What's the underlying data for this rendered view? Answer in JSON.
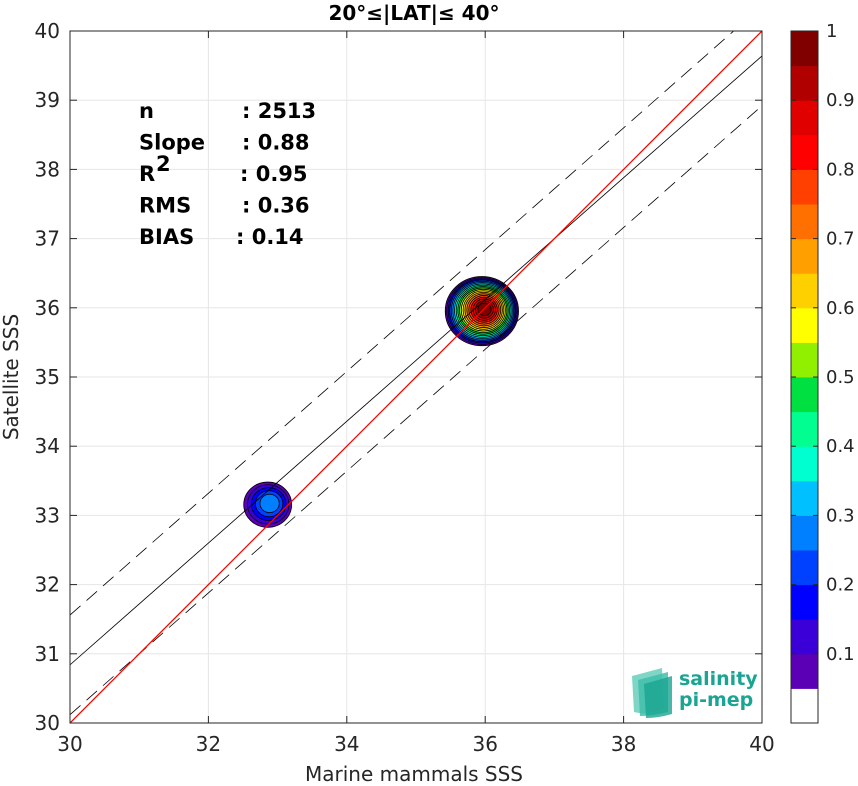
{
  "chart_data": {
    "type": "contour-scatter",
    "title": "20°≤|LAT|≤ 40°",
    "xlabel": "Marine mammals SSS",
    "ylabel": "Satellite SSS",
    "xlim": [
      30,
      40
    ],
    "ylim": [
      30,
      40
    ],
    "xticks": [
      "30",
      "32",
      "34",
      "36",
      "38",
      "40"
    ],
    "yticks": [
      "30",
      "31",
      "32",
      "33",
      "34",
      "35",
      "36",
      "37",
      "38",
      "39",
      "40"
    ],
    "grid": true,
    "stats": [
      {
        "label": "n",
        "value": ": 2513"
      },
      {
        "label": "Slope",
        "value": ": 0.88"
      },
      {
        "label": "R",
        "sup": "2",
        "value": ": 0.95"
      },
      {
        "label": "RMS",
        "value": ": 0.36"
      },
      {
        "label": "BIAS",
        "value": ": 0.14"
      }
    ],
    "lines": {
      "identity": {
        "slope": 1,
        "intercept": 0,
        "color": "#ff0000"
      },
      "fit": {
        "slope": 0.88,
        "intercept": 4.44,
        "color": "#000000"
      },
      "upper_bound": {
        "slope": 0.88,
        "intercept": 5.16,
        "color": "#000000",
        "dash": true
      },
      "lower_bound": {
        "slope": 0.88,
        "intercept": 3.72,
        "color": "#000000",
        "dash": true
      }
    },
    "density_clusters": [
      {
        "x": 35.95,
        "y": 35.95,
        "peak": 1.0
      },
      {
        "x": 32.85,
        "y": 33.15,
        "peak": 0.3
      }
    ],
    "colorbar": {
      "ticks": [
        "0.1",
        "0.2",
        "0.3",
        "0.4",
        "0.5",
        "0.6",
        "0.7",
        "0.8",
        "0.9",
        "1"
      ],
      "colors": [
        "#ffffff",
        "#5b00b5",
        "#3b00d8",
        "#0000ff",
        "#0040ff",
        "#0080ff",
        "#00c0ff",
        "#00ffd0",
        "#00ff90",
        "#00e040",
        "#90f000",
        "#ffff00",
        "#ffd000",
        "#ffa000",
        "#ff7000",
        "#ff4000",
        "#ff0000",
        "#e00000",
        "#b00000",
        "#800000"
      ]
    }
  },
  "logo": {
    "line1": "salinity",
    "line2": "pi-mep"
  }
}
